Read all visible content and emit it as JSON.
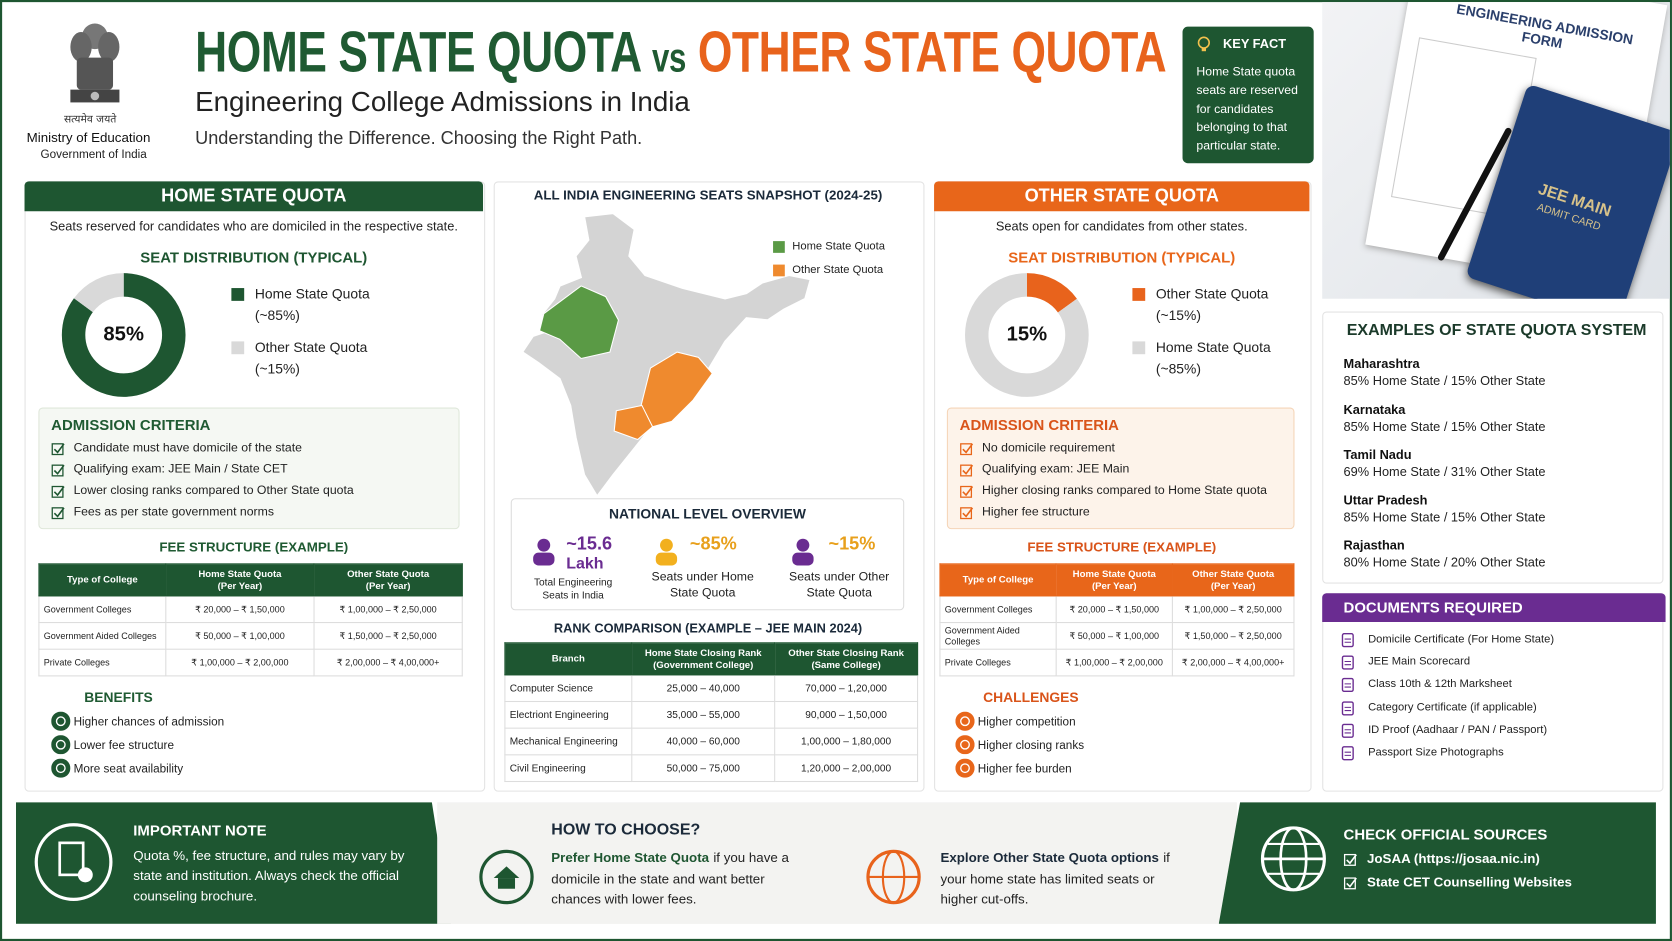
{
  "header": {
    "emblem_text": "सत्यमेव जयते",
    "ministry": "Ministry of Education",
    "government": "Government of India",
    "title_home": "HOME STATE QUOTA",
    "title_vs": "vs",
    "title_other": "OTHER STATE QUOTA",
    "subtitle": "Engineering College Admissions in India",
    "tagline": "Understanding the Difference. Choosing the Right Path."
  },
  "key_fact": {
    "title": "KEY FACT",
    "text": "Home State quota seats are reserved for candidates belonging to that particular state."
  },
  "photo": {
    "form_title": "ENGINEERING ADMISSION FORM",
    "card_title": "JEE MAIN",
    "card_sub": "ADMIT CARD"
  },
  "home": {
    "title": "HOME STATE QUOTA",
    "description": "Seats reserved for candidates who are domiciled in the respective state.",
    "dist_title": "SEAT DISTRIBUTION (TYPICAL)",
    "chart": {
      "type": "donut",
      "values": [
        85,
        15
      ],
      "colors": [
        "#1e5631",
        "#d9d9d9"
      ],
      "center_label": "85%",
      "legend": [
        {
          "name": "Home State Quota",
          "note": "(~85%)"
        },
        {
          "name": "Other State Quota",
          "note": "(~15%)"
        }
      ]
    },
    "criteria": {
      "title": "ADMISSION CRITERIA",
      "items": [
        "Candidate must have domicile of the state",
        "Qualifying exam: JEE Main / State CET",
        "Lower closing ranks compared to Other State quota",
        "Fees as per state government norms"
      ]
    },
    "fee": {
      "title": "FEE STRUCTURE (EXAMPLE)",
      "header": [
        {
          "title": "Type of College"
        },
        {
          "title": "Home State Quota",
          "sub": "(Per Year)"
        },
        {
          "title": "Other State Quota",
          "sub": "(Per Year)"
        }
      ],
      "rows": [
        [
          "Government Colleges",
          "₹ 20,000 – ₹ 1,50,000",
          "₹ 1,00,000 – ₹ 2,50,000"
        ],
        [
          "Government Aided Colleges",
          "₹ 50,000 – ₹ 1,00,000",
          "₹ 1,50,000 – ₹ 2,50,000"
        ],
        [
          "Private Colleges",
          "₹ 1,00,000 – ₹ 2,00,000",
          "₹ 2,00,000 – ₹ 4,00,000+"
        ]
      ]
    },
    "benefits": {
      "title": "BENEFITS",
      "items": [
        "Higher chances of admission",
        "Lower fee structure",
        "More seat availability"
      ]
    }
  },
  "other": {
    "title": "OTHER STATE QUOTA",
    "description": "Seats open for candidates from other states.",
    "dist_title": "SEAT DISTRIBUTION (TYPICAL)",
    "chart": {
      "type": "donut",
      "values": [
        15,
        85
      ],
      "colors": [
        "#e8631c",
        "#d9d9d9"
      ],
      "center_label": "15%",
      "legend": [
        {
          "name": "Other State Quota",
          "note": "(~15%)"
        },
        {
          "name": "Home State Quota",
          "note": "(~85%)"
        }
      ]
    },
    "criteria": {
      "title": "ADMISSION CRITERIA",
      "items": [
        "No domicile requirement",
        "Qualifying exam: JEE Main",
        "Higher closing ranks compared to Home State quota",
        "Higher fee structure"
      ]
    },
    "fee": {
      "title": "FEE STRUCTURE (EXAMPLE)",
      "header": [
        {
          "title": "Type of College"
        },
        {
          "title": "Home State Quota",
          "sub": "(Per Year)"
        },
        {
          "title": "Other State Quota",
          "sub": "(Per Year)"
        }
      ],
      "rows": [
        [
          "Government Colleges",
          "₹ 20,000 – ₹ 1,50,000",
          "₹ 1,00,000 – ₹ 2,50,000"
        ],
        [
          "Government Aided Colleges",
          "₹ 50,000 – ₹ 1,00,000",
          "₹ 1,50,000 – ₹ 2,50,000"
        ],
        [
          "Private Colleges",
          "₹ 1,00,000 – ₹ 2,00,000",
          "₹ 2,00,000 – ₹ 4,00,000+"
        ]
      ]
    },
    "challenges": {
      "title": "CHALLENGES",
      "items": [
        "Higher competition",
        "Higher closing ranks",
        "Higher fee burden"
      ]
    }
  },
  "map": {
    "title": "ALL INDIA ENGINEERING SEATS SNAPSHOT (2024-25)",
    "legend": [
      {
        "name": "Home State Quota",
        "color": "#5a9a45"
      },
      {
        "name": "Other State Quota",
        "color": "#ef8a2e"
      }
    ]
  },
  "overview": {
    "title": "NATIONAL LEVEL OVERVIEW",
    "items": [
      {
        "value": "~15.6",
        "unit": "Lakh",
        "label": "Total Engineering Seats in India"
      },
      {
        "value": "~85%",
        "label": "Seats under Home State Quota"
      },
      {
        "value": "~15%",
        "label": "Seats under Other State Quota"
      }
    ]
  },
  "rank": {
    "title": "RANK COMPARISON (EXAMPLE – JEE MAIN 2024)",
    "header": [
      {
        "title": "Branch"
      },
      {
        "title": "Home State Closing Rank",
        "sub": "(Government College)"
      },
      {
        "title": "Other State Closing Rank",
        "sub": "(Same College)"
      }
    ],
    "rows": [
      [
        "Computer Science",
        "25,000 – 40,000",
        "70,000 – 1,20,000"
      ],
      [
        "Electriont Engineering",
        "35,000 – 55,000",
        "90,000 – 1,50,000"
      ],
      [
        "Mechanical Engineering",
        "40,000 – 60,000",
        "1,00,000 – 1,80,000"
      ],
      [
        "Civil Engineering",
        "50,000 – 75,000",
        "1,20,000 – 2,00,000"
      ]
    ]
  },
  "examples": {
    "title": "EXAMPLES OF STATE QUOTA SYSTEM",
    "items": [
      {
        "state": "Maharashtra",
        "split": "85% Home State / 15% Other State"
      },
      {
        "state": "Karnataka",
        "split": "85% Home State / 15% Other State"
      },
      {
        "state": "Tamil Nadu",
        "split": "69% Home State / 31% Other State"
      },
      {
        "state": "Uttar Pradesh",
        "split": "85% Home State / 15% Other State"
      },
      {
        "state": "Rajasthan",
        "split": "80% Home State / 20% Other State"
      }
    ]
  },
  "documents": {
    "title": "DOCUMENTS REQUIRED",
    "items": [
      "Domicile Certificate (For Home State)",
      "JEE Main Scorecard",
      "Class 10th & 12th Marksheet",
      "Category Certificate (if applicable)",
      "ID Proof (Aadhaar / PAN / Passport)",
      "Passport Size Photographs"
    ]
  },
  "note": {
    "title": "IMPORTANT NOTE",
    "text": "Quota %, fee structure, and rules may vary by state and institution. Always check the official counseling brochure."
  },
  "choose": {
    "title": "HOW TO CHOOSE?",
    "items": [
      {
        "lead": "Prefer Home State Quota",
        "text": "if you have a domicile in the state and want better chances with lower fees."
      },
      {
        "lead": "Explore Other State Quota options",
        "text": "if your home state has limited seats or higher cut-offs."
      }
    ]
  },
  "sources": {
    "title": "CHECK OFFICIAL SOURCES",
    "items": [
      "JoSAA (https://josaa.nic.in)",
      "State CET Counselling Websites"
    ]
  }
}
